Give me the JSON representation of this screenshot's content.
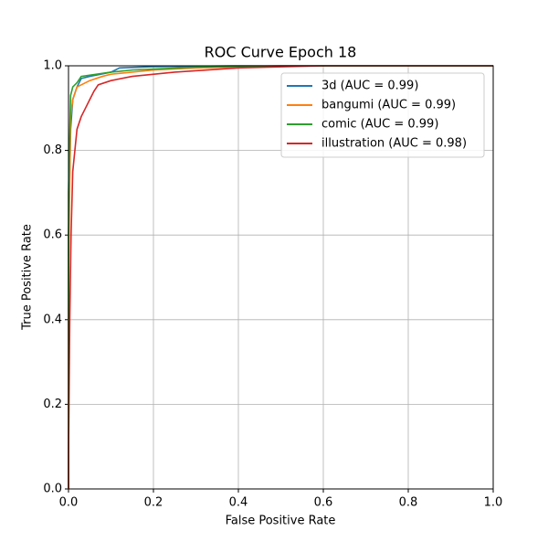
{
  "chart_data": {
    "type": "line",
    "title": "ROC Curve Epoch 18",
    "x_label": "False Positive Rate",
    "y_label": "True Positive Rate",
    "xlim": [
      0,
      1
    ],
    "ylim": [
      0,
      1
    ],
    "xticks": [
      {
        "value": 0,
        "label": "0.0"
      },
      0.2,
      0.4,
      0.6,
      0.8,
      {
        "value": 1,
        "label": "1.0"
      }
    ],
    "yticks": [
      {
        "value": 0,
        "label": "0.0"
      },
      0.2,
      0.4,
      0.6,
      0.8,
      {
        "value": 1,
        "label": "1.0"
      }
    ],
    "grid": true,
    "legend": "upper right",
    "series": [
      {
        "name": "3d (AUC = 0.99)",
        "color": "#1f77b4",
        "x": [
          0,
          0,
          0.005,
          0.01,
          0.02,
          0.03,
          0.05,
          0.1,
          0.12,
          0.2,
          0.4,
          1
        ],
        "values": [
          0,
          0.6,
          0.85,
          0.92,
          0.95,
          0.97,
          0.975,
          0.985,
          0.995,
          0.998,
          1,
          1
        ]
      },
      {
        "name": "bangumi (AUC = 0.99)",
        "color": "#ff7f0e",
        "x": [
          0,
          0,
          0.005,
          0.01,
          0.02,
          0.05,
          0.08,
          0.1,
          0.2,
          0.3,
          0.5,
          1
        ],
        "values": [
          0,
          0.5,
          0.88,
          0.92,
          0.95,
          0.965,
          0.975,
          0.98,
          0.99,
          0.995,
          1,
          1
        ]
      },
      {
        "name": "comic (AUC = 0.99)",
        "color": "#2ca02c",
        "x": [
          0,
          0,
          0.005,
          0.01,
          0.02,
          0.03,
          0.1,
          0.15,
          0.3,
          0.5,
          1
        ],
        "values": [
          0,
          0.7,
          0.93,
          0.95,
          0.96,
          0.975,
          0.985,
          0.99,
          0.997,
          1,
          1
        ]
      },
      {
        "name": "illustration (AUC = 0.98)",
        "color": "#d62728",
        "x": [
          0,
          0,
          0.003,
          0.006,
          0.01,
          0.015,
          0.02,
          0.03,
          0.04,
          0.05,
          0.06,
          0.07,
          0.1,
          0.15,
          0.25,
          0.4,
          0.6,
          1
        ],
        "values": [
          0,
          0.08,
          0.4,
          0.6,
          0.75,
          0.8,
          0.85,
          0.88,
          0.9,
          0.92,
          0.94,
          0.955,
          0.965,
          0.975,
          0.985,
          0.995,
          1,
          1
        ]
      }
    ]
  }
}
